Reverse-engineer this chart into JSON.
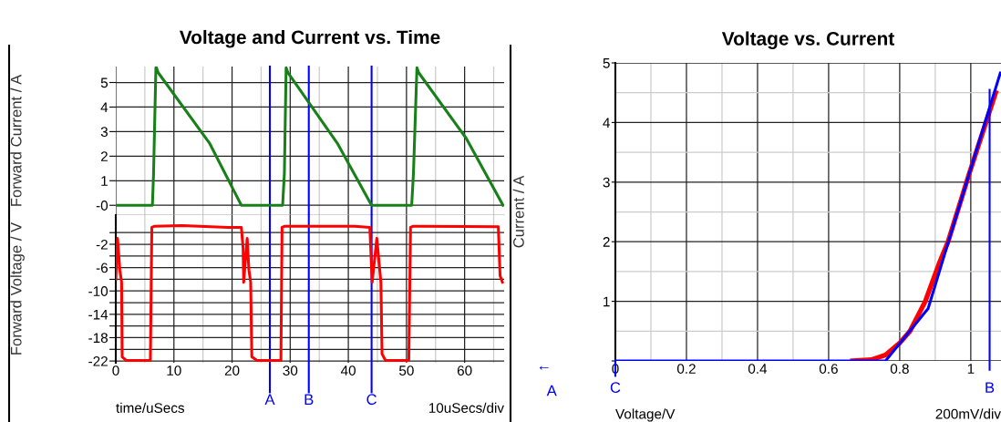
{
  "chart_data": [
    {
      "type": "line",
      "title": "Voltage and Current vs. Time",
      "ylabel": "Forward Current / A",
      "xlim": [
        0,
        66.8
      ],
      "xticks": [
        0,
        10,
        20,
        30,
        40,
        50,
        60
      ],
      "ylim": [
        -0.4,
        5.65
      ],
      "yticks": [
        {
          "value": 0,
          "label": "-0"
        },
        1,
        2,
        3,
        4,
        5
      ],
      "tick_labels": "y",
      "grid": true,
      "series": [
        {
          "color": "#188018",
          "x": [
            0,
            6.3,
            6.5,
            6.9,
            7.0,
            7.3,
            16.1,
            21.6,
            28.7,
            29.0,
            29.3,
            29.6,
            38.1,
            44.0,
            50.9,
            51.2,
            51.8,
            52.1,
            60.3,
            66.6
          ],
          "values": [
            0,
            0,
            1.3,
            5.6,
            5.6,
            5.4,
            2.54,
            0,
            0,
            1.3,
            5.6,
            5.4,
            2.53,
            0,
            0,
            1.3,
            5.6,
            5.4,
            2.72,
            0
          ]
        }
      ],
      "ref_lines": [
        {
          "axis": "x",
          "value": 26.5,
          "color": "#0000ff"
        },
        {
          "axis": "x",
          "value": 33.2,
          "color": "#0000ff"
        },
        {
          "axis": "x",
          "value": 44.0,
          "color": "#0000ff"
        }
      ]
    },
    {
      "type": "line",
      "ylabel": "Forward Voltage / V",
      "xlim": [
        0,
        66.8
      ],
      "xticks": [
        0,
        10,
        20,
        30,
        40,
        50,
        60
      ],
      "ylim": [
        -22.3,
        3
      ],
      "yticks": [
        -22,
        {
          "value": -20,
          "label": null
        },
        -18,
        {
          "value": -16,
          "label": null
        },
        -14,
        {
          "value": -12,
          "label": null
        },
        -10,
        {
          "value": -8,
          "label": null
        },
        -6,
        {
          "value": -4,
          "label": null
        },
        -2,
        {
          "value": 0,
          "label": null
        }
      ],
      "grid": true,
      "annotations": [
        "time/uSecs",
        "10uSecs/div"
      ],
      "series": [
        {
          "color": "#ff0000",
          "x": [
            0,
            0.3,
            0.7,
            1.0,
            1.1,
            1.8,
            5.95,
            6.2,
            6.7,
            11.4,
            19.3,
            21.6,
            21.9,
            22.0,
            22.6,
            22.9,
            23.2,
            23.4,
            24.3,
            28.4,
            28.6,
            29.1,
            41.1,
            43.7,
            44.1,
            44.9,
            45.4,
            45.6,
            45.8,
            46.4,
            50.4,
            50.7,
            51.2,
            65.8,
            66.1,
            66.5
          ],
          "values": [
            -8,
            -1,
            -6.4,
            -8.5,
            -21.3,
            -21.9,
            -21.9,
            0.9,
            1.1,
            1.2,
            0.9,
            0.9,
            -2.7,
            -8.5,
            -1,
            -6.4,
            -8.5,
            -21.3,
            -21.9,
            -21.9,
            0.9,
            1.1,
            1.1,
            0.9,
            -8.5,
            -1,
            -6.4,
            -8.5,
            -20.8,
            -21.9,
            -21.9,
            0.9,
            1.1,
            1.0,
            -7.4,
            -8.5
          ]
        }
      ],
      "ref_lines": [
        {
          "axis": "x",
          "value": 26.5,
          "label": "A",
          "color": "#0000ff"
        },
        {
          "axis": "x",
          "value": 33.2,
          "label": "B",
          "color": "#0000ff"
        },
        {
          "axis": "x",
          "value": 44.0,
          "label": "C",
          "color": "#0000ff"
        }
      ]
    },
    {
      "type": "line",
      "title": "Voltage vs. Current",
      "xlabel": "Voltage/V",
      "ylabel": "Current / A",
      "xlim": [
        0,
        1.085
      ],
      "xticks": [
        0,
        0.2,
        0.4,
        0.6,
        0.8,
        1
      ],
      "ylim": [
        0,
        5
      ],
      "yticks": [
        {
          "value": 0,
          "label": null
        },
        1,
        2,
        3,
        4,
        5
      ],
      "grid": true,
      "annotations": [
        "←",
        "A",
        "200mV/div"
      ],
      "series": [
        {
          "color": "#ff0000",
          "x": [
            0.667,
            0.72,
            0.76,
            0.8,
            0.829,
            0.872,
            0.91,
            0.936,
            0.996,
            1.07
          ],
          "values": [
            0,
            0.02,
            0.1,
            0.3,
            0.5,
            1.0,
            1.62,
            2.0,
            3.15,
            4.5
          ]
        },
        {
          "color": "#0000ff",
          "x": [
            0,
            0.76,
            0.88,
            0.936,
            0.996,
            1.083
          ],
          "values": [
            0,
            0,
            0.88,
            1.98,
            3.15,
            4.83
          ]
        }
      ],
      "ref_lines": [
        {
          "axis": "x",
          "value": 1.053,
          "label": "B",
          "color": "#0000ff"
        },
        {
          "axis": "x",
          "value": 0,
          "label": "C",
          "color": "#0000ff"
        }
      ]
    }
  ]
}
